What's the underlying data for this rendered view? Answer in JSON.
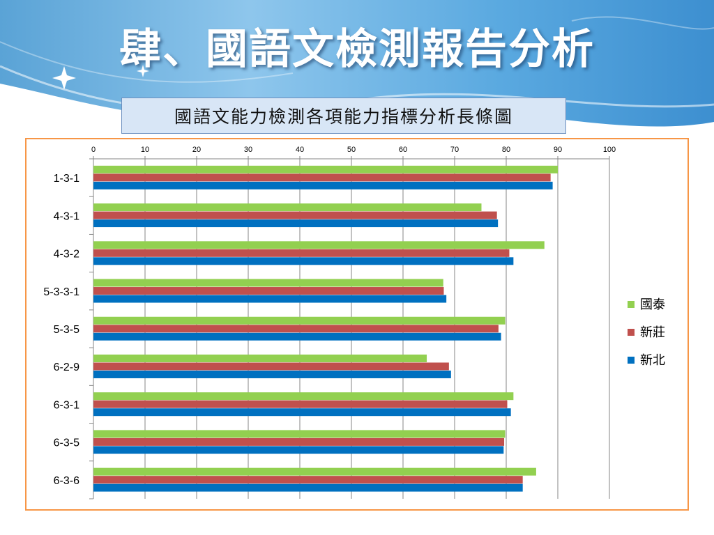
{
  "slide": {
    "title": "肆、國語文檢測報告分析"
  },
  "chart_data": {
    "type": "bar",
    "orientation": "horizontal",
    "title": "國語文能力檢測各項能力指標分析長條圖",
    "categories": [
      "1-3-1",
      "4-3-1",
      "4-3-2",
      "5-3-3-1",
      "5-3-5",
      "6-2-9",
      "6-3-1",
      "6-3-5",
      "6-3-6"
    ],
    "series": [
      {
        "name": "國泰",
        "color": "#92d050",
        "values": [
          90,
          75.2,
          87.4,
          67.8,
          79.8,
          64.6,
          81.4,
          79.8,
          85.8
        ]
      },
      {
        "name": "新莊",
        "color": "#c0504d",
        "values": [
          88.6,
          78.2,
          80.6,
          67.9,
          78.5,
          68.9,
          80.2,
          79.6,
          83.2
        ]
      },
      {
        "name": "新北",
        "color": "#0070c0",
        "values": [
          89,
          78.4,
          81.4,
          68.4,
          79,
          69.3,
          80.9,
          79.5,
          83.2
        ]
      }
    ],
    "xlim": [
      0,
      100
    ],
    "ticks": [
      "0",
      "10",
      "20",
      "30",
      "40",
      "50",
      "60",
      "70",
      "80",
      "90",
      "100"
    ],
    "xaxis_position": "top",
    "grid": true,
    "legend_position": "right"
  }
}
